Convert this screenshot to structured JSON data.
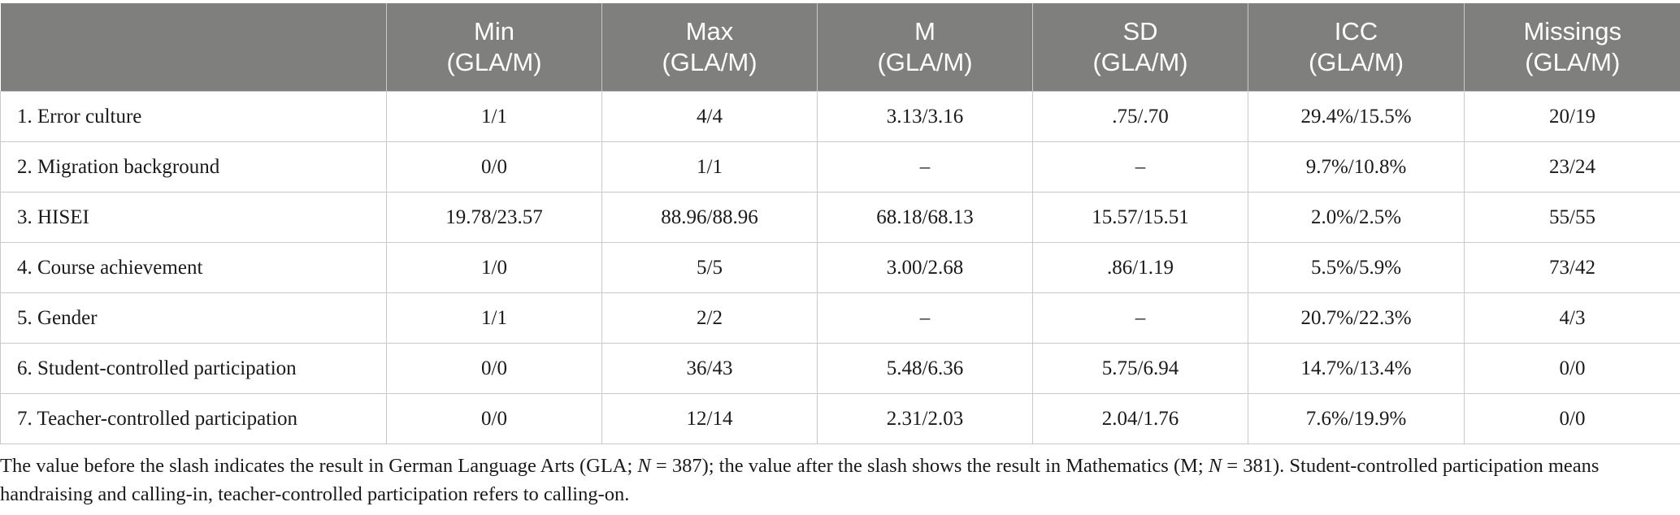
{
  "table": {
    "columns": [
      {
        "line1": "",
        "line2": ""
      },
      {
        "line1": "Min",
        "line2": "(GLA/M)"
      },
      {
        "line1": "Max",
        "line2": "(GLA/M)"
      },
      {
        "line1": "M",
        "line2": "(GLA/M)"
      },
      {
        "line1": "SD",
        "line2": "(GLA/M)"
      },
      {
        "line1": "ICC",
        "line2": "(GLA/M)"
      },
      {
        "line1": "Missings",
        "line2": "(GLA/M)"
      }
    ],
    "rows": [
      [
        "1. Error culture",
        "1/1",
        "4/4",
        "3.13/3.16",
        ".75/.70",
        "29.4%/15.5%",
        "20/19"
      ],
      [
        "2. Migration background",
        "0/0",
        "1/1",
        "–",
        "–",
        "9.7%/10.8%",
        "23/24"
      ],
      [
        "3. HISEI",
        "19.78/23.57",
        "88.96/88.96",
        "68.18/68.13",
        "15.57/15.51",
        "2.0%/2.5%",
        "55/55"
      ],
      [
        "4. Course achievement",
        "1/0",
        "5/5",
        "3.00/2.68",
        ".86/1.19",
        "5.5%/5.9%",
        "73/42"
      ],
      [
        "5. Gender",
        "1/1",
        "2/2",
        "–",
        "–",
        "20.7%/22.3%",
        "4/3"
      ],
      [
        "6. Student-controlled participation",
        "0/0",
        "36/43",
        "5.48/6.36",
        "5.75/6.94",
        "14.7%/13.4%",
        "0/0"
      ],
      [
        "7. Teacher-controlled participation",
        "0/0",
        "12/14",
        "2.31/2.03",
        "2.04/1.76",
        "7.6%/19.9%",
        "0/0"
      ]
    ]
  },
  "note": {
    "part1": "The value before the slash indicates the result in German Language Arts (GLA; ",
    "n1_label": "N",
    "n1_value": " = 387); the value after the slash shows the result in Mathematics (M; ",
    "n2_label": "N",
    "n2_value": " = 381). Student-controlled participation means handraising and calling-in, teacher-controlled participation refers to calling-on."
  }
}
